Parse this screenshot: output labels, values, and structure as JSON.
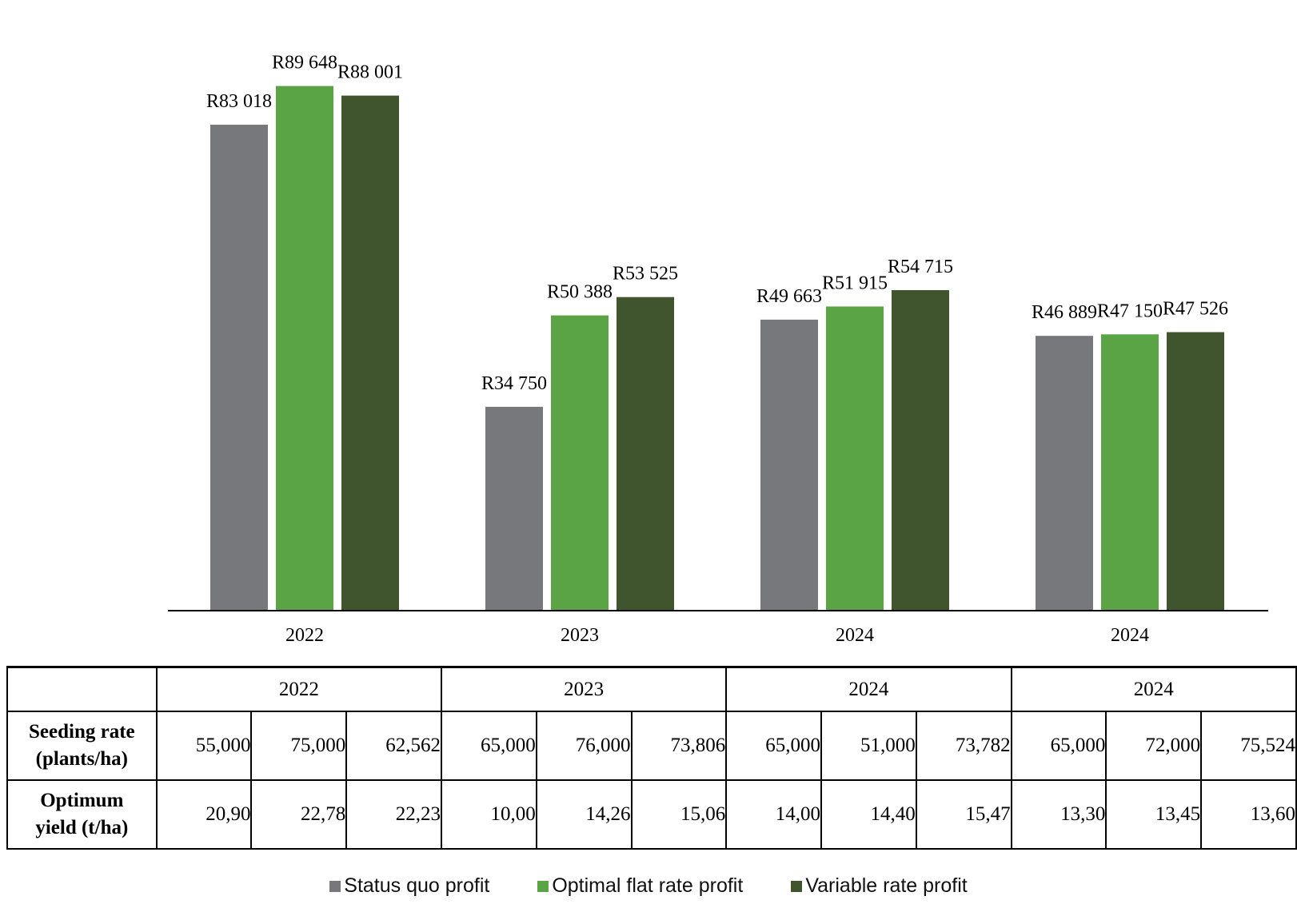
{
  "chart_data": {
    "type": "bar",
    "categories": [
      "2022",
      "2023",
      "2024",
      "2024"
    ],
    "series": [
      {
        "name": "Status quo profit",
        "color": "#77787b",
        "values": [
          83018,
          34750,
          49663,
          46889
        ],
        "labels": [
          "R83 018",
          "R34 750",
          "R49 663",
          "R46 889"
        ]
      },
      {
        "name": "Optimal flat rate profit",
        "color": "#5aa446",
        "values": [
          89648,
          50388,
          51915,
          47150
        ],
        "labels": [
          "R89 648",
          "R50 388",
          "R51 915",
          "R47 150"
        ]
      },
      {
        "name": "Variable rate profit",
        "color": "#40552d",
        "values": [
          88001,
          53525,
          54715,
          47526
        ],
        "labels": [
          "R88 001",
          "R53 525",
          "R54 715",
          "R47 526"
        ]
      }
    ],
    "ylim": [
      0,
      90000
    ],
    "grid": false,
    "legend": "bottom"
  },
  "table": {
    "year_headers": [
      "2022",
      "2023",
      "2024",
      "2024"
    ],
    "rows": [
      {
        "label_line1": "Seeding rate",
        "label_line2": "(plants/ha)",
        "values": [
          "55,000",
          "75,000",
          "62,562",
          "65,000",
          "76,000",
          "73,806",
          "65,000",
          "51,000",
          "73,782",
          "65,000",
          "72,000",
          "75,524"
        ]
      },
      {
        "label_line1": "Optimum",
        "label_line2": "yield (t/ha)",
        "values": [
          "20,90",
          "22,78",
          "22,23",
          "10,00",
          "14,26",
          "15,06",
          "14,00",
          "14,40",
          "15,47",
          "13,30",
          "13,45",
          "13,60"
        ]
      }
    ]
  },
  "legend": [
    {
      "label": "Status quo profit",
      "color": "#77787b"
    },
    {
      "label": "Optimal flat rate profit",
      "color": "#5aa446"
    },
    {
      "label": "Variable rate profit",
      "color": "#40552d"
    }
  ]
}
